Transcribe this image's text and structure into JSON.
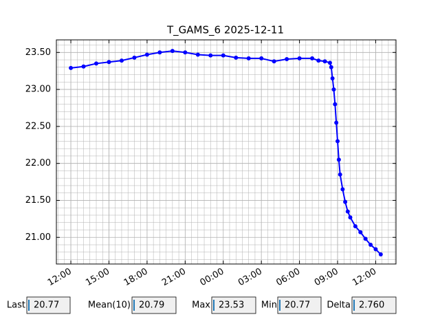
{
  "chart_data": {
    "type": "line",
    "title": "T_GAMS_6 2025-12-11",
    "series": [
      {
        "name": "T_GAMS_6",
        "color": "#0000ff",
        "x": [
          0,
          1,
          2,
          3,
          4,
          5,
          6,
          7,
          8,
          9,
          10,
          11,
          12,
          13,
          14,
          15,
          16,
          17,
          18,
          19,
          19.5,
          20,
          20.4,
          20.5,
          20.6,
          20.7,
          20.8,
          20.9,
          21.0,
          21.1,
          21.2,
          21.4,
          21.6,
          21.8,
          22.0,
          22.4,
          22.8,
          23.2,
          23.6,
          24.0,
          24.4
        ],
        "values": [
          23.29,
          23.31,
          23.35,
          23.37,
          23.39,
          23.43,
          23.47,
          23.5,
          23.52,
          23.5,
          23.47,
          23.46,
          23.46,
          23.43,
          23.42,
          23.42,
          23.38,
          23.41,
          23.42,
          23.42,
          23.39,
          23.38,
          23.36,
          23.3,
          23.15,
          23.0,
          22.8,
          22.55,
          22.3,
          22.05,
          21.85,
          21.65,
          21.48,
          21.35,
          21.27,
          21.15,
          21.07,
          20.98,
          20.9,
          20.84,
          20.77
        ]
      }
    ],
    "xlim": [
      -1.14,
      25.6
    ],
    "xticks": [
      {
        "value": 0,
        "label": "12:00"
      },
      {
        "value": 3,
        "label": "15:00"
      },
      {
        "value": 6,
        "label": "18:00"
      },
      {
        "value": 9,
        "label": "21:00"
      },
      {
        "value": 12,
        "label": "00:00"
      },
      {
        "value": 15,
        "label": "03:00"
      },
      {
        "value": 18,
        "label": "06:00"
      },
      {
        "value": 21,
        "label": "09:00"
      },
      {
        "value": 24,
        "label": "12:00"
      }
    ],
    "ylim": [
      20.64,
      23.67
    ],
    "yticks": [
      {
        "value": 21,
        "label": "21.00"
      },
      {
        "value": 21.5,
        "label": "21.50"
      },
      {
        "value": 22,
        "label": "22.00"
      },
      {
        "value": 22.5,
        "label": "22.50"
      },
      {
        "value": 23,
        "label": "23.00"
      },
      {
        "value": 23.5,
        "label": "23.50"
      }
    ],
    "grid": true
  },
  "widgets": [
    {
      "label": "Last",
      "value": "20.77"
    },
    {
      "label": "Mean(10)",
      "value": "20.79"
    },
    {
      "label": "Max",
      "value": "23.53"
    },
    {
      "label": "Min",
      "value": "20.77"
    },
    {
      "label": "Delta",
      "value": "2.760"
    }
  ]
}
